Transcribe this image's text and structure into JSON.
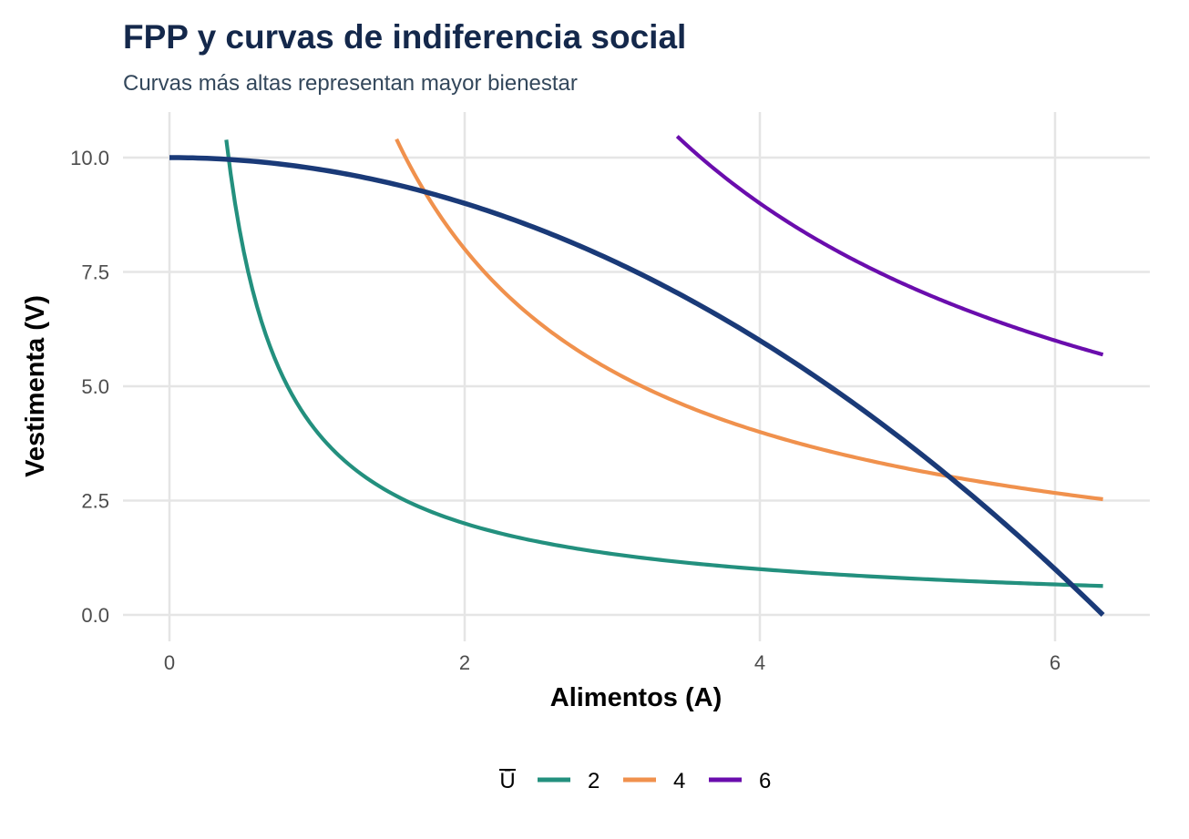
{
  "chart_data": {
    "type": "line",
    "title": "FPP y curvas de indiferencia social",
    "subtitle": "Curvas más altas representan mayor bienestar",
    "xlabel": "Alimentos (A)",
    "ylabel": "Vestimenta (V)",
    "xlim": [
      -0.3,
      6.6
    ],
    "ylim": [
      -0.55,
      11.0
    ],
    "xticks": [
      0,
      2,
      4,
      6
    ],
    "xtick_labels": [
      "0",
      "2",
      "4",
      "6"
    ],
    "yticks": [
      0,
      2.5,
      5,
      7.5,
      10
    ],
    "ytick_labels": [
      "0.0",
      "2.5",
      "5.0",
      "7.5",
      "10.0"
    ],
    "grid": true,
    "legend": {
      "title": "Ū",
      "position": "bottom",
      "entries": [
        "2",
        "4",
        "6"
      ]
    },
    "ppf": {
      "name": "FPP",
      "formula": "V = 10 - A^2/4",
      "color": "#1a3a78",
      "x": [
        0,
        0.5,
        1,
        1.5,
        2,
        2.5,
        3,
        3.5,
        4,
        4.5,
        5,
        5.5,
        6,
        6.3246
      ],
      "y": [
        10,
        9.94,
        9.75,
        9.44,
        9.0,
        8.44,
        7.75,
        6.94,
        6.0,
        4.94,
        3.75,
        2.44,
        1.0,
        0.0
      ]
    },
    "series": [
      {
        "name": "2",
        "formula": "A*V = 4",
        "color": "#23907e",
        "x": [
          0.385,
          0.5,
          0.75,
          1,
          1.5,
          2,
          3,
          4,
          5,
          6,
          6.3246
        ],
        "y": [
          10.4,
          8.0,
          5.33,
          4.0,
          2.67,
          2.0,
          1.33,
          1.0,
          0.8,
          0.67,
          0.63
        ]
      },
      {
        "name": "4",
        "formula": "A*V = 16",
        "color": "#f0914d",
        "x": [
          1.538,
          2,
          2.5,
          3,
          4,
          5,
          6,
          6.3246
        ],
        "y": [
          10.4,
          8.0,
          6.4,
          5.33,
          4.0,
          3.2,
          2.67,
          2.53
        ]
      },
      {
        "name": "6",
        "formula": "A*V = 36",
        "color": "#6a0dad",
        "x": [
          3.44,
          4,
          4.5,
          5,
          5.5,
          6,
          6.3246
        ],
        "y": [
          10.47,
          9.0,
          8.0,
          7.2,
          6.55,
          6.0,
          5.69
        ]
      }
    ]
  }
}
